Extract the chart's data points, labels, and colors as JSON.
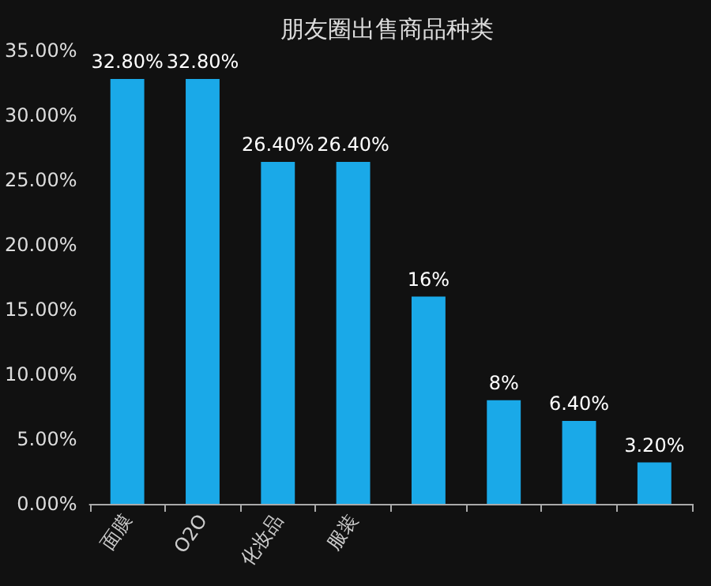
{
  "chart_data": {
    "type": "bar",
    "title": "朋友圈出售商品种类",
    "categories": [
      "面膜",
      "O2O",
      "化妆品",
      "服装",
      null,
      null,
      null,
      null
    ],
    "values": [
      32.8,
      32.8,
      26.4,
      26.4,
      16,
      8,
      6.4,
      3.2
    ],
    "value_labels": [
      "32.80%",
      "32.80%",
      "26.40%",
      "26.40%",
      "16%",
      "8%",
      "6.40%",
      "3.20%"
    ],
    "color": "#1aa9e8",
    "ylim": [
      0,
      35
    ],
    "yticks": [
      {
        "value": 0,
        "label": "0.00%"
      },
      {
        "value": 5,
        "label": "5.00%"
      },
      {
        "value": 10,
        "label": "10.00%"
      },
      {
        "value": 15,
        "label": "15.00%"
      },
      {
        "value": 20,
        "label": "20.00%"
      },
      {
        "value": 25,
        "label": "25.00%"
      },
      {
        "value": 30,
        "label": "30.00%"
      },
      {
        "value": 35,
        "label": "35.00%"
      }
    ],
    "grid": false
  }
}
